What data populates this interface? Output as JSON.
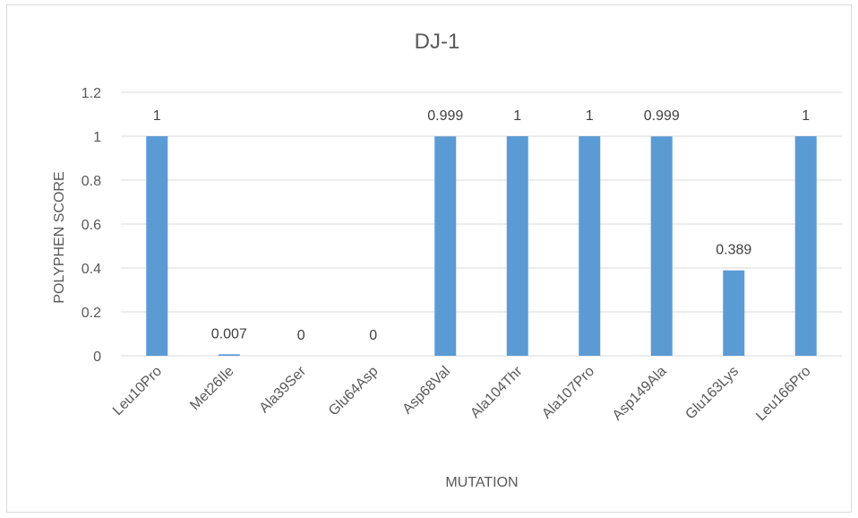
{
  "chart_data": {
    "type": "bar",
    "title": "DJ-1",
    "xlabel": "MUTATION",
    "ylabel": "POLYPHEN SCORE",
    "categories": [
      "Leu10Pro",
      "Met26Ile",
      "Ala39Ser",
      "Glu64Asp",
      "Asp68Val",
      "Ala104Thr",
      "Ala107Pro",
      "Asp149Ala",
      "Glu163Lys",
      "Leu166Pro"
    ],
    "values": [
      1,
      0.007,
      0,
      0,
      0.999,
      1,
      1,
      0.999,
      0.389,
      1
    ],
    "data_labels": [
      "1",
      "0.007",
      "0",
      "0",
      "0.999",
      "1",
      "1",
      "0.999",
      "0.389",
      "1"
    ],
    "yticks": [
      "0",
      "0.2",
      "0.4",
      "0.6",
      "0.8",
      "1",
      "1.2"
    ],
    "ylim": [
      0,
      1.2
    ],
    "grid": true,
    "legend": "none",
    "colors": {
      "bar": "#5b9bd5",
      "grid": "#d9d9d9",
      "text": "#595959"
    }
  }
}
